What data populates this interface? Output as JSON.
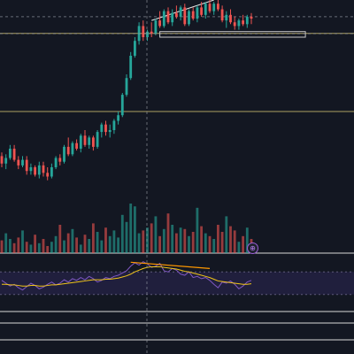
{
  "chart_data": [
    {
      "type": "candlestick",
      "title": "",
      "xlabel": "",
      "ylabel": "",
      "grid": false,
      "ylim": [
        0,
        100
      ],
      "colors": {
        "up": "#26a69a",
        "down": "#ef5350",
        "background": "#131722",
        "level": "#c8b86e",
        "annotation": "#e6e6e6"
      },
      "candles": [
        {
          "o": 16,
          "h": 18,
          "l": 10,
          "c": 12
        },
        {
          "o": 12,
          "h": 17,
          "l": 9,
          "c": 15
        },
        {
          "o": 15,
          "h": 22,
          "l": 14,
          "c": 20
        },
        {
          "o": 20,
          "h": 22,
          "l": 13,
          "c": 14
        },
        {
          "o": 14,
          "h": 16,
          "l": 9,
          "c": 11
        },
        {
          "o": 11,
          "h": 16,
          "l": 10,
          "c": 14
        },
        {
          "o": 14,
          "h": 16,
          "l": 6,
          "c": 8
        },
        {
          "o": 8,
          "h": 12,
          "l": 6,
          "c": 10
        },
        {
          "o": 10,
          "h": 11,
          "l": 5,
          "c": 6
        },
        {
          "o": 6,
          "h": 13,
          "l": 4,
          "c": 11
        },
        {
          "o": 11,
          "h": 13,
          "l": 5,
          "c": 7
        },
        {
          "o": 7,
          "h": 10,
          "l": 3,
          "c": 5
        },
        {
          "o": 5,
          "h": 12,
          "l": 4,
          "c": 10
        },
        {
          "o": 10,
          "h": 16,
          "l": 9,
          "c": 15
        },
        {
          "o": 15,
          "h": 17,
          "l": 11,
          "c": 13
        },
        {
          "o": 13,
          "h": 22,
          "l": 12,
          "c": 21
        },
        {
          "o": 21,
          "h": 26,
          "l": 16,
          "c": 17
        },
        {
          "o": 17,
          "h": 24,
          "l": 16,
          "c": 23
        },
        {
          "o": 23,
          "h": 25,
          "l": 19,
          "c": 20
        },
        {
          "o": 20,
          "h": 28,
          "l": 18,
          "c": 27
        },
        {
          "o": 27,
          "h": 30,
          "l": 21,
          "c": 22
        },
        {
          "o": 22,
          "h": 27,
          "l": 20,
          "c": 26
        },
        {
          "o": 26,
          "h": 27,
          "l": 19,
          "c": 21
        },
        {
          "o": 21,
          "h": 30,
          "l": 20,
          "c": 29
        },
        {
          "o": 29,
          "h": 34,
          "l": 26,
          "c": 33
        },
        {
          "o": 33,
          "h": 35,
          "l": 27,
          "c": 29
        },
        {
          "o": 29,
          "h": 33,
          "l": 26,
          "c": 30
        },
        {
          "o": 30,
          "h": 36,
          "l": 28,
          "c": 35
        },
        {
          "o": 35,
          "h": 40,
          "l": 33,
          "c": 38
        },
        {
          "o": 38,
          "h": 50,
          "l": 37,
          "c": 49
        },
        {
          "o": 49,
          "h": 60,
          "l": 48,
          "c": 58
        },
        {
          "o": 58,
          "h": 72,
          "l": 57,
          "c": 70
        },
        {
          "o": 70,
          "h": 80,
          "l": 69,
          "c": 78
        },
        {
          "o": 78,
          "h": 88,
          "l": 76,
          "c": 86
        },
        {
          "o": 86,
          "h": 89,
          "l": 78,
          "c": 80
        },
        {
          "o": 80,
          "h": 84,
          "l": 78,
          "c": 83
        },
        {
          "o": 83,
          "h": 88,
          "l": 80,
          "c": 82
        },
        {
          "o": 82,
          "h": 90,
          "l": 81,
          "c": 89
        },
        {
          "o": 89,
          "h": 94,
          "l": 85,
          "c": 86
        },
        {
          "o": 86,
          "h": 95,
          "l": 85,
          "c": 94
        },
        {
          "o": 94,
          "h": 96,
          "l": 87,
          "c": 88
        },
        {
          "o": 88,
          "h": 95,
          "l": 86,
          "c": 93
        },
        {
          "o": 93,
          "h": 97,
          "l": 90,
          "c": 91
        },
        {
          "o": 91,
          "h": 97,
          "l": 89,
          "c": 96
        },
        {
          "o": 96,
          "h": 98,
          "l": 86,
          "c": 87
        },
        {
          "o": 87,
          "h": 95,
          "l": 86,
          "c": 94
        },
        {
          "o": 94,
          "h": 96,
          "l": 89,
          "c": 90
        },
        {
          "o": 90,
          "h": 97,
          "l": 88,
          "c": 96
        },
        {
          "o": 96,
          "h": 99,
          "l": 91,
          "c": 92
        },
        {
          "o": 92,
          "h": 99,
          "l": 90,
          "c": 98
        },
        {
          "o": 98,
          "h": 100,
          "l": 93,
          "c": 94
        },
        {
          "o": 94,
          "h": 99,
          "l": 92,
          "c": 98
        },
        {
          "o": 98,
          "h": 100,
          "l": 94,
          "c": 95
        },
        {
          "o": 95,
          "h": 97,
          "l": 88,
          "c": 89
        },
        {
          "o": 89,
          "h": 94,
          "l": 85,
          "c": 92
        },
        {
          "o": 92,
          "h": 95,
          "l": 87,
          "c": 88
        },
        {
          "o": 88,
          "h": 91,
          "l": 84,
          "c": 86
        },
        {
          "o": 86,
          "h": 90,
          "l": 84,
          "c": 89
        },
        {
          "o": 89,
          "h": 92,
          "l": 86,
          "c": 87
        },
        {
          "o": 87,
          "h": 92,
          "l": 85,
          "c": 91
        },
        {
          "o": 91,
          "h": 93,
          "l": 87,
          "c": 90
        }
      ],
      "levels": [
        {
          "y": 82,
          "color": "#c8b86e",
          "style": "solid"
        },
        {
          "y": 40,
          "color": "#c8b86e",
          "style": "solid"
        },
        {
          "y": 91,
          "color": "#8a8f9c",
          "style": "dashed"
        }
      ],
      "annotations": {
        "trendline": {
          "from": [
            36,
            89
          ],
          "to": [
            51,
            100
          ],
          "color": "#e6e6e6"
        },
        "zone": {
          "from": [
            38,
            80
          ],
          "to": [
            73,
            83
          ],
          "color": "#c8c8c8"
        }
      }
    },
    {
      "type": "bar",
      "title": "",
      "series": [
        {
          "values": [
            9,
            14,
            10,
            7,
            11,
            16,
            8,
            6,
            13,
            7,
            10,
            5,
            8,
            12,
            20,
            9,
            14,
            17,
            11,
            6,
            13,
            10,
            21,
            15,
            9,
            18,
            12,
            16,
            11,
            27,
            22,
            35,
            33,
            14,
            16,
            18,
            21,
            26,
            12,
            17,
            28,
            20,
            14,
            18,
            17,
            12,
            15,
            32,
            19,
            14,
            12,
            10,
            20,
            15,
            26,
            19,
            16,
            8,
            12,
            18,
            10
          ]
        }
      ]
    },
    {
      "type": "line",
      "title": "",
      "ylim": [
        0,
        100
      ],
      "series": [
        {
          "name": "",
          "color": "#7e57c2",
          "values": [
            55,
            50,
            45,
            48,
            42,
            38,
            44,
            50,
            46,
            40,
            43,
            48,
            52,
            47,
            50,
            56,
            52,
            58,
            55,
            60,
            56,
            62,
            58,
            52,
            55,
            60,
            58,
            62,
            64,
            68,
            72,
            80,
            86,
            82,
            88,
            84,
            78,
            80,
            85,
            72,
            70,
            76,
            73,
            66,
            64,
            70,
            60,
            62,
            58,
            60,
            55,
            48,
            42,
            52,
            50,
            54,
            48,
            40,
            45,
            52,
            55
          ]
        },
        {
          "name": "",
          "color": "#f0c419",
          "values": [
            48,
            48,
            47,
            47,
            46,
            45,
            45,
            46,
            46,
            45,
            45,
            46,
            47,
            47,
            48,
            49,
            50,
            51,
            52,
            53,
            54,
            55,
            56,
            56,
            56,
            57,
            57,
            58,
            59,
            61,
            63,
            66,
            70,
            73,
            76,
            78,
            79,
            79,
            79,
            78,
            77,
            76,
            75,
            73,
            71,
            70,
            68,
            66,
            64,
            62,
            60,
            57,
            54,
            53,
            52,
            51,
            50,
            49,
            48,
            48,
            49
          ]
        }
      ],
      "bands": [
        70,
        30
      ],
      "divergence": {
        "from": [
          31,
          87
        ],
        "to": [
          50,
          76
        ],
        "color": "#ff9800"
      }
    }
  ]
}
